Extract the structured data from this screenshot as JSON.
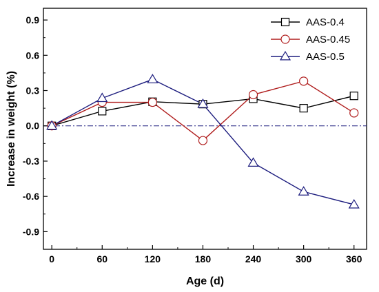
{
  "chart_data": {
    "type": "line",
    "xlabel": "Age (d)",
    "ylabel": "Increase in weight (%)",
    "x": [
      0,
      60,
      120,
      180,
      240,
      300,
      360
    ],
    "xticks": [
      "0",
      "60",
      "120",
      "180",
      "240",
      "300",
      "360"
    ],
    "xlim": [
      -10,
      375
    ],
    "yticks": [
      "-0.9",
      "-0.6",
      "-0.3",
      "0.0",
      "0.3",
      "0.6",
      "0.9"
    ],
    "ytick_values": [
      -0.9,
      -0.6,
      -0.3,
      0.0,
      0.3,
      0.6,
      0.9
    ],
    "ylim": [
      -1.05,
      1.0
    ],
    "reference_line": {
      "y": 0.0,
      "style": "dash-dot"
    },
    "legend_position": "top-right",
    "grid": false,
    "series": [
      {
        "name": "AAS-0.4",
        "marker": "square",
        "color": "#000000",
        "values": [
          0.0,
          0.125,
          0.205,
          0.185,
          0.23,
          0.15,
          0.255
        ]
      },
      {
        "name": "AAS-0.45",
        "marker": "circle",
        "color": "#b01e1e",
        "values": [
          0.0,
          0.2,
          0.2,
          -0.125,
          0.265,
          0.38,
          0.11
        ]
      },
      {
        "name": "AAS-0.5",
        "marker": "triangle",
        "color": "#1c1c7e",
        "values": [
          0.0,
          0.235,
          0.395,
          0.185,
          -0.315,
          -0.56,
          -0.67
        ]
      }
    ]
  }
}
